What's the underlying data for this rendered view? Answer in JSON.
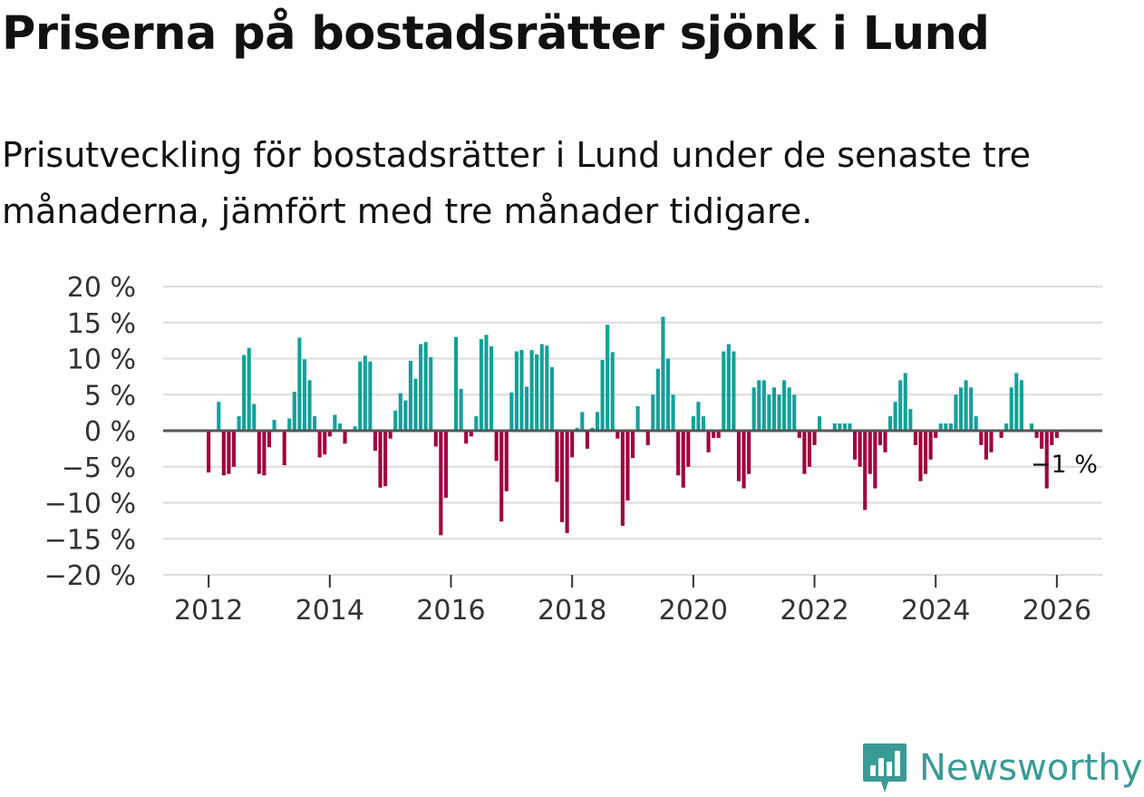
{
  "title": "Priserna på bostadsrätter sjönk i Lund",
  "subtitle": "Prisutveckling för bostadsrätter i Lund under de senaste tre månaderna, jämfört med tre månader tidigare.",
  "brand": {
    "name": "Newsworthy",
    "color": "#3a9b94",
    "icon": "bar-chart-icon"
  },
  "colors": {
    "positive": "#14a09a",
    "negative": "#a0003f",
    "grid": "#dcdcdc",
    "zero": "#555555"
  },
  "chart_data": {
    "type": "bar",
    "title": "Priserna på bostadsrätter sjönk i Lund",
    "ylim": [
      -20,
      20
    ],
    "xlim": [
      2011.25,
      2026.75
    ],
    "yticks": [
      20,
      15,
      10,
      5,
      0,
      -5,
      -10,
      -15,
      -20
    ],
    "ytick_labels": [
      "20 %",
      "15 %",
      "10 %",
      "5 %",
      "0 %",
      "−5 %",
      "−10 %",
      "−15 %",
      "−20 %"
    ],
    "xticks": [
      2012,
      2014,
      2016,
      2018,
      2020,
      2022,
      2024,
      2026
    ],
    "xtick_labels": [
      "2012",
      "2014",
      "2016",
      "2018",
      "2020",
      "2022",
      "2024",
      "2026"
    ],
    "start": 2012.0,
    "step": 0.0833333,
    "values": [
      -5.8,
      0,
      4,
      -6.2,
      -6,
      -5,
      2,
      10.5,
      11.5,
      3.7,
      -6,
      -6.2,
      -2.3,
      1.5,
      0,
      -4.8,
      1.7,
      5.4,
      12.9,
      9.9,
      7,
      2,
      -3.7,
      -3.3,
      -0.8,
      2.2,
      1,
      -1.8,
      0,
      0.6,
      9.6,
      10.4,
      9.6,
      -2.8,
      -7.9,
      -7.7,
      -1.1,
      2.8,
      5.2,
      4.2,
      9.7,
      7.2,
      12,
      12.3,
      10.2,
      -2.2,
      -14.5,
      -9.3,
      0,
      13,
      5.8,
      -1.8,
      -0.8,
      2,
      12.7,
      13.3,
      11.7,
      -4.2,
      -12.6,
      -8.4,
      5.3,
      11,
      11.2,
      6.1,
      11.2,
      10.6,
      12,
      11.8,
      8.8,
      -7.1,
      -12.7,
      -14.2,
      -3.7,
      0.4,
      2.6,
      -2.5,
      0.4,
      2.6,
      9.8,
      14.7,
      10.9,
      -1.1,
      -13.2,
      -9.7,
      -3.8,
      3.4,
      0,
      -2,
      5,
      8.6,
      15.8,
      10,
      5,
      -6.2,
      -7.9,
      -5,
      2,
      4,
      2,
      -3,
      -1,
      -1,
      11,
      12,
      11,
      -7,
      -8,
      -6,
      6,
      7,
      7,
      5,
      6,
      5,
      7,
      6,
      5,
      -1,
      -6,
      -5,
      -2,
      2,
      0,
      0,
      1,
      1,
      1,
      1,
      -4,
      -5,
      -11,
      -6,
      -8,
      -2,
      -3,
      2,
      4,
      7,
      8,
      3,
      -2,
      -7,
      -6,
      -4,
      -1,
      1,
      1,
      1,
      5,
      6,
      7,
      6,
      2,
      -2,
      -4,
      -3,
      0,
      -1,
      1,
      6,
      8,
      7,
      0,
      1,
      -1,
      -2.5,
      -8,
      -2,
      -1
    ],
    "annotation": {
      "text": "−1 %"
    }
  }
}
